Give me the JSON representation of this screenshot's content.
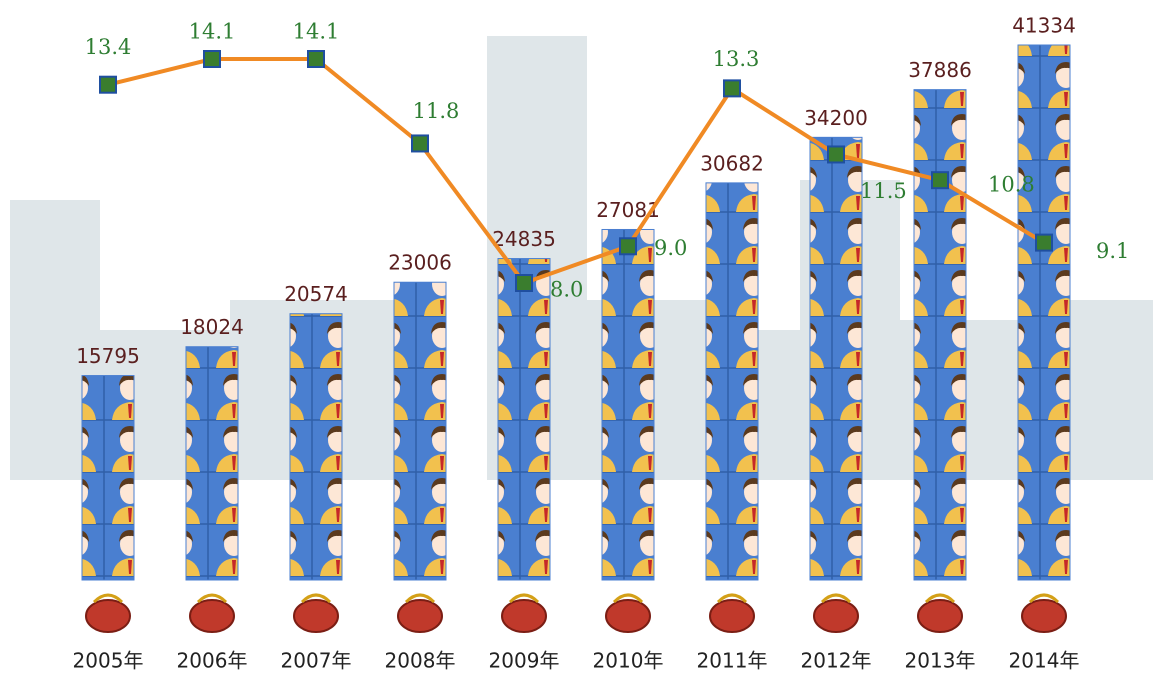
{
  "chart_data": {
    "type": "bar-line",
    "categories": [
      "2005年",
      "2006年",
      "2007年",
      "2008年",
      "2009年",
      "2010年",
      "2011年",
      "2012年",
      "2013年",
      "2014年"
    ],
    "series": [
      {
        "type": "bar",
        "color": "#4a7fd0",
        "values": [
          15795,
          18024,
          20574,
          23006,
          24835,
          27081,
          30682,
          34200,
          37886,
          41334
        ]
      },
      {
        "type": "line",
        "color": "#f08a24",
        "marker_color": "#3a7d2e",
        "values": [
          13.4,
          14.1,
          14.1,
          11.8,
          8.0,
          9.0,
          13.3,
          11.5,
          10.8,
          9.1
        ],
        "value_labels": [
          "13.4",
          "14.1",
          "14.1",
          "11.8",
          "8.0",
          "9.0",
          "13.3",
          "11.5",
          "10.8",
          "9.1"
        ]
      }
    ]
  }
}
